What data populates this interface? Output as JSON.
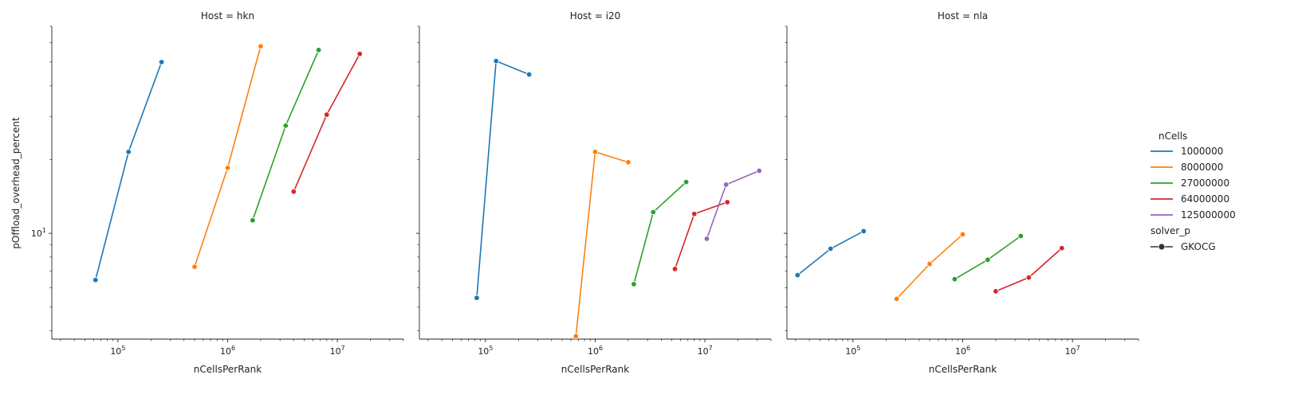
{
  "chart_data": {
    "type": "line",
    "xlabel": "nCellsPerRank",
    "ylabel": "pOffload_overhead_percent",
    "xscale": "log",
    "yscale": "log",
    "xlim": [
      25000,
      40000000
    ],
    "ylim": [
      3.7,
      70
    ],
    "x_ticks": [
      {
        "value": 100000,
        "base": "10",
        "exp": "5"
      },
      {
        "value": 1000000,
        "base": "10",
        "exp": "6"
      },
      {
        "value": 10000000,
        "base": "10",
        "exp": "7"
      }
    ],
    "y_ticks": [
      {
        "value": 10,
        "base": "10",
        "exp": "1"
      }
    ],
    "grid": false,
    "legend": {
      "placement": "right",
      "hue_title": "nCells",
      "style_title": "solver_p",
      "style_entries": [
        "GKOCG"
      ]
    },
    "series_colors": {
      "1000000": "#1f77b4",
      "8000000": "#ff7f0e",
      "27000000": "#2ca02c",
      "64000000": "#d62728",
      "125000000": "#9467bd"
    },
    "series_names": [
      "1000000",
      "8000000",
      "27000000",
      "64000000",
      "125000000"
    ],
    "panels": [
      {
        "title": "Host = hkn",
        "series": [
          {
            "name": "1000000",
            "points": [
              [
                62500,
                6.45
              ],
              [
                125000,
                21.5
              ],
              [
                250000,
                50.0
              ]
            ]
          },
          {
            "name": "8000000",
            "points": [
              [
                500000,
                7.3
              ],
              [
                1000000,
                18.5
              ],
              [
                2000000,
                58.0
              ]
            ]
          },
          {
            "name": "27000000",
            "points": [
              [
                1690000,
                11.3
              ],
              [
                3380000,
                27.5
              ],
              [
                6750000,
                56.0
              ]
            ]
          },
          {
            "name": "64000000",
            "points": [
              [
                4000000,
                14.8
              ],
              [
                8000000,
                30.5
              ],
              [
                16000000,
                54.0
              ]
            ]
          }
        ]
      },
      {
        "title": "Host = i20",
        "series": [
          {
            "name": "1000000",
            "points": [
              [
                83300,
                5.45
              ],
              [
                125000,
                50.5
              ],
              [
                250000,
                44.5
              ]
            ]
          },
          {
            "name": "8000000",
            "points": [
              [
                667000,
                3.8
              ],
              [
                1000000,
                21.5
              ],
              [
                2000000,
                19.5
              ]
            ]
          },
          {
            "name": "27000000",
            "points": [
              [
                2250000,
                6.2
              ],
              [
                3380000,
                12.2
              ],
              [
                6750000,
                16.2
              ]
            ]
          },
          {
            "name": "64000000",
            "points": [
              [
                5330000,
                7.15
              ],
              [
                8000000,
                12.0
              ],
              [
                16000000,
                13.4
              ]
            ]
          },
          {
            "name": "125000000",
            "points": [
              [
                10400000,
                9.5
              ],
              [
                15600000,
                15.8
              ],
              [
                31250000,
                18.0
              ]
            ]
          }
        ]
      },
      {
        "title": "Host = nla",
        "series": [
          {
            "name": "1000000",
            "points": [
              [
                31250,
                6.75
              ],
              [
                62500,
                8.65
              ],
              [
                125000,
                10.2
              ]
            ]
          },
          {
            "name": "8000000",
            "points": [
              [
                250000,
                5.4
              ],
              [
                500000,
                7.5
              ],
              [
                1000000,
                9.9
              ]
            ]
          },
          {
            "name": "27000000",
            "points": [
              [
                844000,
                6.5
              ],
              [
                1690000,
                7.8
              ],
              [
                3380000,
                9.75
              ]
            ]
          },
          {
            "name": "64000000",
            "points": [
              [
                2000000,
                5.8
              ],
              [
                4000000,
                6.6
              ],
              [
                8000000,
                8.7
              ]
            ]
          }
        ]
      }
    ]
  }
}
